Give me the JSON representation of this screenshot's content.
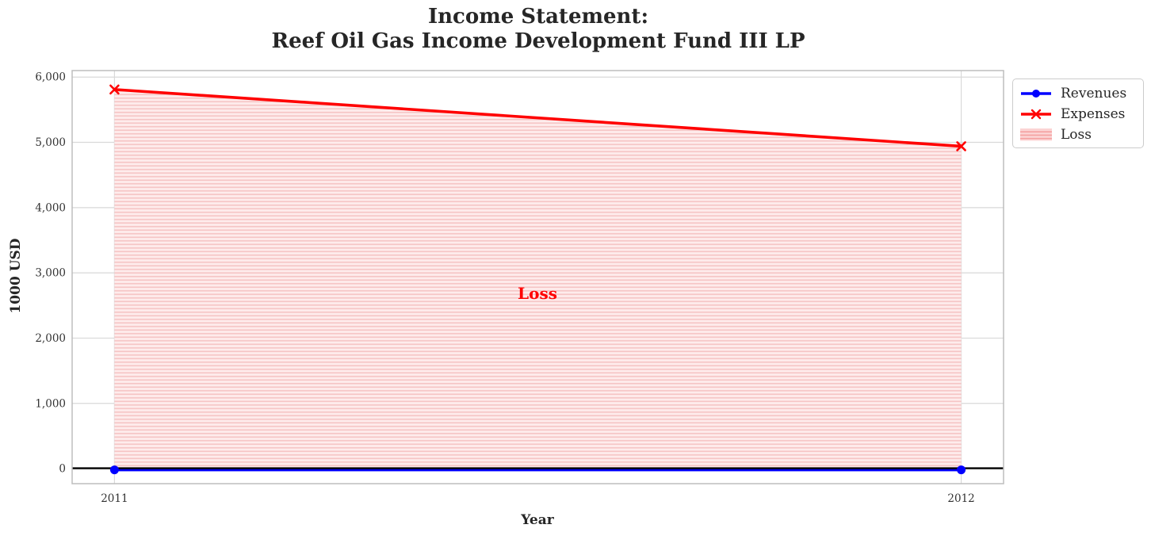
{
  "title": {
    "line1": "Income Statement:",
    "line2": "Reef Oil Gas Income Development Fund III LP"
  },
  "axes": {
    "xlabel": "Year",
    "ylabel": "1000 USD"
  },
  "annotation": {
    "text": "Loss",
    "color": "#ff0000"
  },
  "legend": {
    "items": [
      {
        "label": "Revenues",
        "swatch": "line-circle",
        "color": "#0000ff"
      },
      {
        "label": "Expenses",
        "swatch": "line-x",
        "color": "#ff0000"
      },
      {
        "label": "Loss",
        "swatch": "hatched-patch",
        "color": "#f6c6c6"
      }
    ]
  },
  "chart_data": {
    "type": "line",
    "title": "Income Statement: Reef Oil Gas Income Development Fund III LP",
    "xlabel": "Year",
    "ylabel": "1000 USD",
    "x": [
      2011,
      2012
    ],
    "series": [
      {
        "name": "Revenues",
        "color": "#0000ff",
        "marker": "circle",
        "values": [
          0,
          0
        ]
      },
      {
        "name": "Expenses",
        "color": "#ff0000",
        "marker": "x",
        "values": [
          5810,
          4940
        ]
      }
    ],
    "loss_area": {
      "label": "Loss",
      "between": [
        "Revenues",
        "Expenses"
      ],
      "x_range": [
        2011,
        2012
      ],
      "style": "horizontal-hatch",
      "color": "#ff0000"
    },
    "annotation": {
      "text": "Loss",
      "x": 2011.5,
      "y": 2680
    },
    "x_ticks": [
      2011,
      2012
    ],
    "x_tick_labels": [
      "2011",
      "2012"
    ],
    "y_tick_values": [
      0,
      1000,
      2000,
      3000,
      4000,
      5000,
      6000
    ],
    "y_tick_labels": [
      "0",
      "1,000",
      "2,000",
      "3,000",
      "4,000",
      "5,000",
      "6,000"
    ],
    "xlim": [
      2010.95,
      2012.05
    ],
    "ylim": [
      -230,
      6100
    ],
    "grid": true,
    "zero_line": true,
    "legend_position": "upper right outside"
  },
  "colors": {
    "revenues": "#0000ff",
    "expenses": "#ff0000",
    "zero_line": "#000000",
    "loss_fill_bg": "#feecec",
    "loss_fill_stripe": "#f6c6c6",
    "legend_patch_bg": "#fcd7d7",
    "legend_patch_stripe": "#f5a2a2",
    "grid": "#d9d9d9",
    "spine": "#bdbdbd",
    "tick_text": "#333333",
    "title_text": "#262626"
  }
}
